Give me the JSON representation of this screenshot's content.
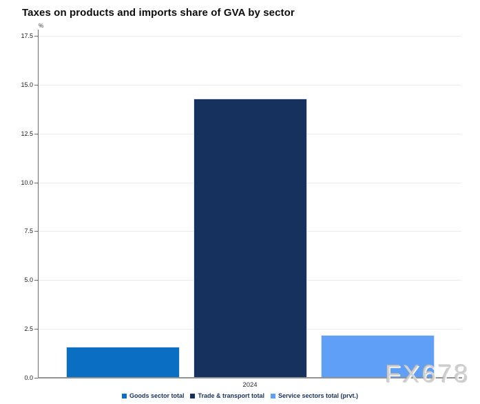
{
  "page": {
    "background": "#ffffff"
  },
  "header": {
    "title": "Taxes on products and imports share of GVA by sector"
  },
  "watermark": {
    "text": "FX678"
  },
  "chart_data": {
    "type": "bar",
    "title": "Taxes on products and imports share of GVA by sector",
    "unit_label": "%",
    "xlabel": "",
    "ylabel": "%",
    "categories": [
      "2024"
    ],
    "series": [
      {
        "name": "Goods sector total",
        "values": [
          1.6
        ],
        "color": "#0a6fc2"
      },
      {
        "name": "Trade & transport total",
        "values": [
          14.3
        ],
        "color": "#17315e"
      },
      {
        "name": "Service sectors total (prvt.)",
        "values": [
          2.2
        ],
        "color": "#5f9ff7"
      }
    ],
    "ylim": [
      0,
      17.5
    ],
    "ytick_step": 2.5,
    "yticks_top_to_bottom": [
      "17.5",
      "15.0",
      "12.5",
      "10.0",
      "7.5",
      "5.0",
      "2.5",
      "0.0"
    ],
    "grid": true,
    "legend_position": "bottom"
  }
}
